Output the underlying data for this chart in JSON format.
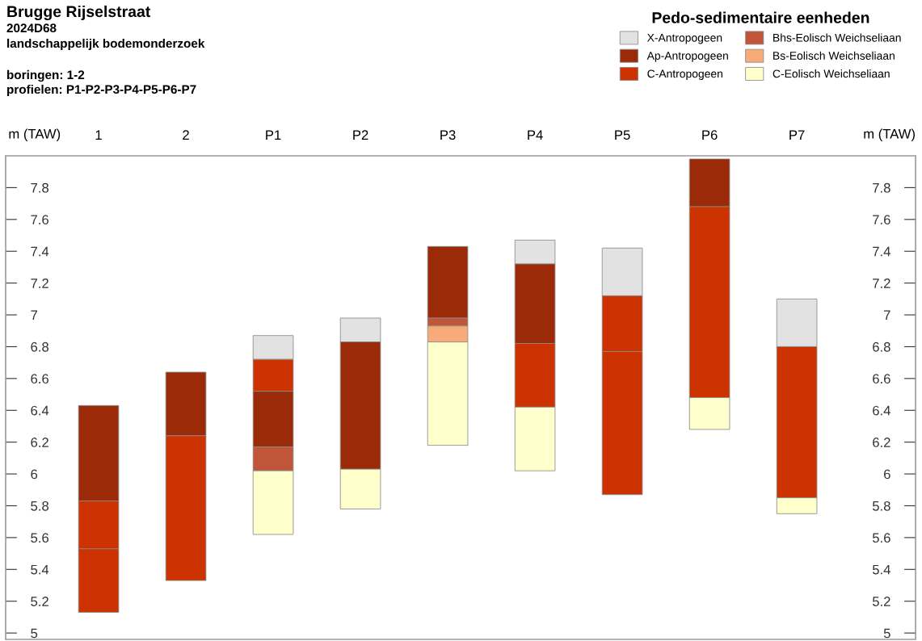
{
  "chart_data": {
    "type": "bar",
    "title": "Brugge Rijselstraat",
    "subtitle": "2024D68",
    "annotations": [
      "landschappelijk bodemonderzoek",
      "boringen: 1-2",
      "profielen: P1-P2-P3-P4-P5-P6-P7"
    ],
    "ylabel": "m (TAW)",
    "y2label": "m (TAW)",
    "legend_title": "Pedo-sedimentaire eenheden",
    "legend": "top right",
    "categories": [
      "1",
      "2",
      "P1",
      "P2",
      "P3",
      "P4",
      "P5",
      "P6",
      "P7"
    ],
    "ylim": [
      4.96,
      8.0
    ],
    "yticks": [
      5,
      5.2,
      5.4,
      5.6,
      5.8,
      6,
      6.2,
      6.4,
      6.6,
      6.8,
      7,
      7.2,
      7.4,
      7.6,
      7.8
    ],
    "y2lim": [
      4.96,
      8.0
    ],
    "y2ticks": [
      5,
      5.2,
      5.4,
      5.6,
      5.8,
      6,
      6.2,
      6.4,
      6.6,
      6.8,
      7,
      7.2,
      7.4,
      7.6,
      7.8
    ],
    "grid": false,
    "series": [
      {
        "name": "X-Antropogeen",
        "color": "#e2e2e2",
        "base": [
          null,
          null,
          6.72,
          6.83,
          null,
          7.32,
          7.12,
          null,
          6.8
        ],
        "values": [
          null,
          null,
          0.15,
          0.15,
          null,
          0.15,
          0.3,
          null,
          0.3
        ]
      },
      {
        "name": "Ap-Antropogeen",
        "color": "#9a2a08",
        "base": [
          5.83,
          6.24,
          6.17,
          6.03,
          6.98,
          6.82,
          null,
          7.68,
          null
        ],
        "values": [
          0.6,
          0.4,
          0.35,
          0.8,
          0.45,
          0.5,
          null,
          0.3,
          null
        ]
      },
      {
        "name": "C-Antropogeen",
        "color": "#cc3300",
        "base": [
          5.13,
          5.33,
          6.52,
          null,
          null,
          6.42,
          5.87,
          6.48,
          5.85
        ],
        "values": [
          0.4,
          0.91,
          0.2,
          null,
          null,
          0.4,
          0.9,
          1.2,
          0.95
        ]
      },
      {
        "name": "Bhs-Eolisch Weichseliaan",
        "color": "#c0553a",
        "base": [
          null,
          null,
          6.02,
          null,
          6.93,
          null,
          null,
          null,
          null
        ],
        "values": [
          null,
          null,
          0.15,
          null,
          0.05,
          null,
          null,
          null,
          null
        ]
      },
      {
        "name": "Bs-Eolisch Weichseliaan",
        "color": "#f8aa78",
        "base": [
          null,
          null,
          null,
          null,
          6.83,
          null,
          null,
          null,
          null
        ],
        "values": [
          null,
          null,
          null,
          null,
          0.1,
          null,
          null,
          null,
          null
        ]
      },
      {
        "name": "C-Eolisch Weichseliaan",
        "color": "#ffffcc",
        "base": [
          null,
          null,
          5.62,
          5.78,
          6.18,
          6.02,
          null,
          6.28,
          5.75
        ],
        "values": [
          null,
          null,
          0.4,
          0.25,
          0.65,
          0.4,
          null,
          0.2,
          0.1
        ]
      },
      {
        "color": "#cc3300",
        "base": [
          5.53,
          null,
          null,
          null,
          null,
          null,
          6.77,
          null,
          null
        ],
        "values": [
          0.3,
          null,
          null,
          null,
          null,
          null,
          0.35,
          null,
          null
        ]
      }
    ]
  }
}
